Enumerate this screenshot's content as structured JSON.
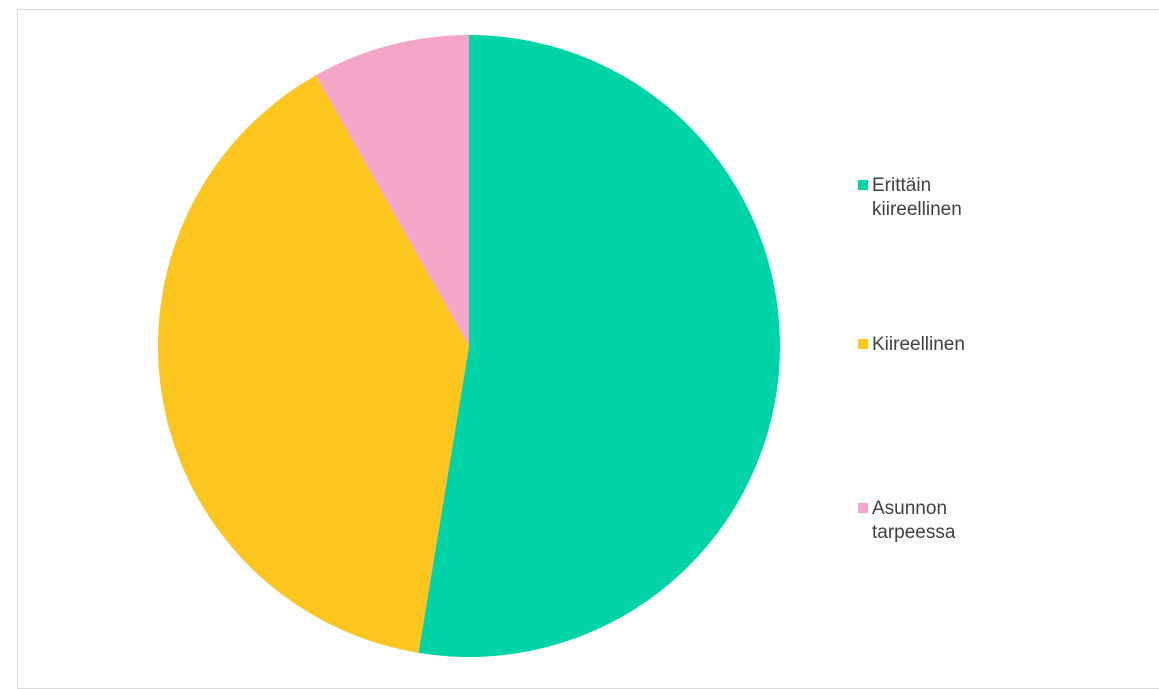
{
  "chart_data": {
    "type": "pie",
    "title": "",
    "categories": [
      "Erittäin kiireellinen",
      "Kiireellinen",
      "Asunnon tarpeessa"
    ],
    "values": [
      52.6,
      39.2,
      8.2
    ],
    "colors": [
      "#00d4a6",
      "#fdc61f",
      "#f4a6c9"
    ],
    "legend_position": "right"
  },
  "legend": {
    "items": [
      {
        "label": "Erittäin kiireellinen",
        "color": "#00d4a6"
      },
      {
        "label": "Kiireellinen",
        "color": "#fdc61f"
      },
      {
        "label": "Asunnon tarpeessa",
        "color": "#f4a6c9"
      }
    ]
  }
}
